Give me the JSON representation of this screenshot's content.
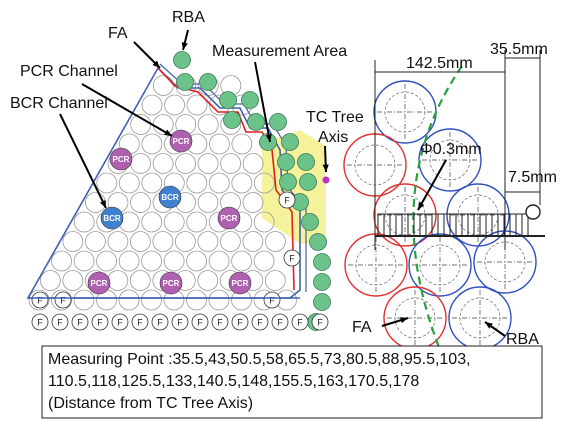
{
  "core_map": {
    "labels": {
      "rba": "RBA",
      "fa": "FA",
      "pcr_channel": "PCR Channel",
      "measurement_area": "Measurement Area",
      "bcr_channel": "BCR Channel",
      "tc_tree_axis": [
        "TC Tree",
        "Axis"
      ]
    },
    "channels": [
      "PCR",
      "PCR",
      "BCR",
      "BCR",
      "PCR",
      "PCR",
      "PCR",
      "PCR"
    ],
    "fa_markers": [
      "F",
      "F",
      "F",
      "F",
      "F",
      "F",
      "F",
      "F",
      "F",
      "F",
      "F",
      "F",
      "F",
      "F",
      "F",
      "F",
      "F",
      "F",
      "F",
      "F"
    ]
  },
  "detail": {
    "dims": [
      "142.5mm",
      "35.5mm",
      "Φ0.3mm",
      "7.5mm"
    ],
    "fa": "FA",
    "rba": "RBA"
  },
  "note": {
    "lines": [
      "Measuring Point :35.5,43,50.5,58,65.5,73,80.5,88,95.5,103,",
      "110.5,118,125.5,133,140.5,148,155.5,163,170.5,178",
      "(Distance from TC Tree Axis)"
    ]
  }
}
